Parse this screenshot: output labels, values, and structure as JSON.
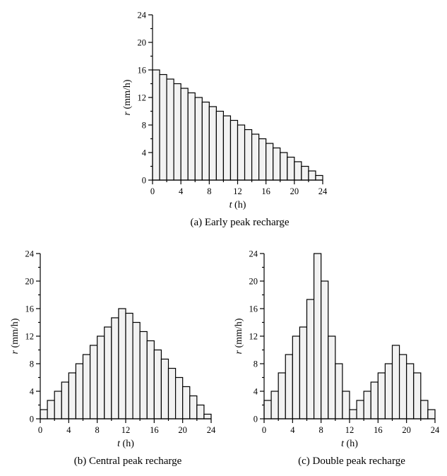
{
  "chart_data": [
    {
      "type": "bar",
      "caption": "(a) Early peak recharge",
      "xlabel_var": "t",
      "xlabel_unit": " (h)",
      "ylabel_var": "r",
      "ylabel_unit": " (mm/h)",
      "xlim": [
        0,
        24
      ],
      "ylim": [
        0,
        24
      ],
      "xticks": [
        0,
        4,
        8,
        12,
        16,
        20,
        24
      ],
      "yticks": [
        0,
        4,
        8,
        12,
        16,
        20,
        24
      ],
      "bin_width": 1,
      "values": [
        16,
        15.33,
        14.67,
        14,
        13.33,
        12.67,
        12,
        11.33,
        10.67,
        10,
        9.33,
        8.67,
        8,
        7.33,
        6.67,
        6,
        5.33,
        4.67,
        4,
        3.33,
        2.67,
        2,
        1.33,
        0.67
      ]
    },
    {
      "type": "bar",
      "caption": "(b) Central peak recharge",
      "xlabel_var": "t",
      "xlabel_unit": " (h)",
      "ylabel_var": "r",
      "ylabel_unit": " (mm/h)",
      "xlim": [
        0,
        24
      ],
      "ylim": [
        0,
        24
      ],
      "xticks": [
        0,
        4,
        8,
        12,
        16,
        20,
        24
      ],
      "yticks": [
        0,
        4,
        8,
        12,
        16,
        20,
        24
      ],
      "bin_width": 1,
      "values": [
        1.33,
        2.67,
        4,
        5.33,
        6.67,
        8,
        9.33,
        10.67,
        12,
        13.33,
        14.67,
        16,
        15.33,
        14,
        12.67,
        11.33,
        10,
        8.67,
        7.33,
        6,
        4.67,
        3.33,
        2,
        0.67
      ]
    },
    {
      "type": "bar",
      "caption": "(c) Double peak recharge",
      "xlabel_var": "t",
      "xlabel_unit": " (h)",
      "ylabel_var": "r",
      "ylabel_unit": " (mm/h)",
      "xlim": [
        0,
        24
      ],
      "ylim": [
        0,
        24
      ],
      "xticks": [
        0,
        4,
        8,
        12,
        16,
        20,
        24
      ],
      "yticks": [
        0,
        4,
        8,
        12,
        16,
        20,
        24
      ],
      "bin_width": 1,
      "values": [
        2.67,
        4,
        6.67,
        9.33,
        12,
        13.33,
        17.33,
        24,
        20,
        12,
        8,
        4,
        1.33,
        2.67,
        4,
        5.33,
        6.67,
        8,
        10.67,
        9.33,
        8,
        6.67,
        2.67,
        1.33
      ]
    }
  ]
}
